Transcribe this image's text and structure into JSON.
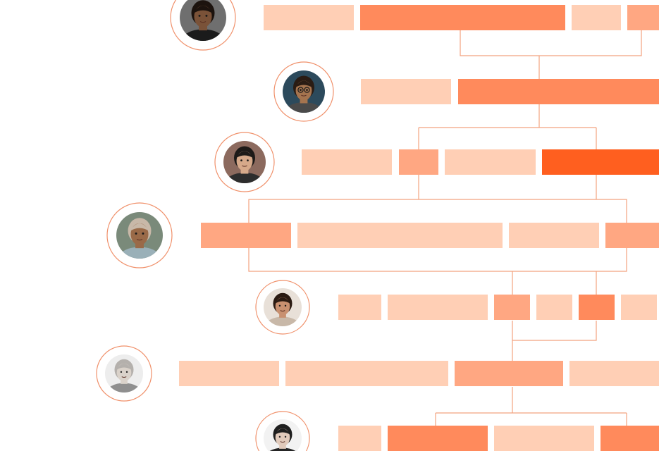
{
  "palette": {
    "light": "#ffcfb5",
    "medium": "#ffa782",
    "strong": "#ff8a5c",
    "deep": "#ff5f1f",
    "line": "#f2a27f",
    "ring": "#f0906a"
  },
  "rows": [
    {
      "avatar": {
        "icon": "person-portrait-icon",
        "skin": "#7a5238",
        "hair": "#1c130e",
        "bg": "#6f6f6f",
        "shirt": "#1b1b1b"
      },
      "blocks": [
        "light",
        "strong",
        "light",
        "medium"
      ]
    },
    {
      "avatar": {
        "icon": "person-portrait-icon",
        "skin": "#a5744f",
        "hair": "#2a1c14",
        "bg": "#2c4a5c",
        "shirt": "#4a4a4a",
        "glasses": true
      },
      "blocks": [
        "light",
        "strong"
      ]
    },
    {
      "avatar": {
        "icon": "person-portrait-icon",
        "skin": "#d6a98a",
        "hair": "#1d1a18",
        "bg": "#8c6a5e",
        "shirt": "#2d2d2d"
      },
      "blocks": [
        "light",
        "medium",
        "light",
        "deep"
      ]
    },
    {
      "avatar": {
        "icon": "person-portrait-icon",
        "skin": "#9a6a48",
        "hair": "#c8b8a8",
        "bg": "#7a8a7a",
        "shirt": "#9ab0b8"
      },
      "blocks": [
        "medium",
        "light",
        "light",
        "medium"
      ]
    },
    {
      "avatar": {
        "icon": "person-portrait-icon",
        "skin": "#c89070",
        "hair": "#2a1a12",
        "bg": "#e8e0d8",
        "shirt": "#c8b8a8"
      },
      "blocks": [
        "light",
        "light",
        "medium",
        "light",
        "strong",
        "light"
      ]
    },
    {
      "avatar": {
        "icon": "person-portrait-icon",
        "skin": "#d8d0c8",
        "hair": "#b0aca8",
        "bg": "#ececec",
        "shirt": "#8a8a8a",
        "mono": true
      },
      "blocks": [
        "light",
        "light",
        "medium",
        "light"
      ]
    },
    {
      "avatar": {
        "icon": "person-portrait-icon",
        "skin": "#e0c8b8",
        "hair": "#121212",
        "bg": "#f2f2f2",
        "shirt": "#1a1a1a",
        "mono": true
      },
      "blocks": [
        "light",
        "strong",
        "light",
        "strong"
      ]
    }
  ]
}
